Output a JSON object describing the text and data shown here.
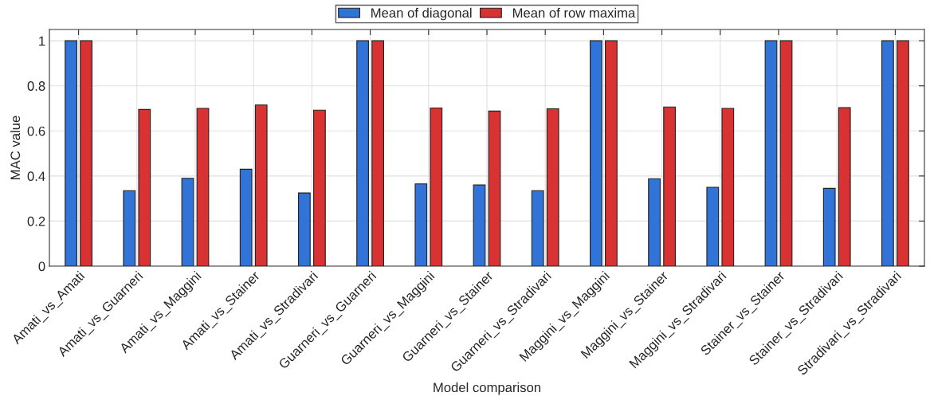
{
  "chart_data": {
    "type": "bar",
    "xlabel": "Model comparison",
    "ylabel": "MAC value",
    "categories": [
      "Amati_vs_Amati",
      "Amati_vs_Guarneri",
      "Amati_vs_Maggini",
      "Amati_vs_Stainer",
      "Amati_vs_Stradivari",
      "Guarneri_vs_Guarneri",
      "Guarneri_vs_Maggini",
      "Guarneri_vs_Stainer",
      "Guarneri_vs_Stradivari",
      "Maggini_vs_Maggini",
      "Maggini_vs_Stainer",
      "Maggini_vs_Stradivari",
      "Stainer_vs_Stainer",
      "Stainer_vs_Stradivari",
      "Stradivari_vs_Stradivari"
    ],
    "series": [
      {
        "name": "Mean of diagonal",
        "color": "#3173d6",
        "values": [
          1,
          0.335,
          0.39,
          0.43,
          0.325,
          1,
          0.365,
          0.36,
          0.335,
          1,
          0.388,
          0.35,
          1,
          0.345,
          1
        ]
      },
      {
        "name": "Mean of row maxima",
        "color": "#d93232",
        "values": [
          1,
          0.695,
          0.7,
          0.715,
          0.692,
          1,
          0.702,
          0.688,
          0.698,
          1,
          0.706,
          0.7,
          1,
          0.703,
          1
        ]
      }
    ],
    "ylim": [
      0,
      1.05
    ],
    "yticks": [
      0,
      0.2,
      0.4,
      0.6,
      0.8,
      1
    ],
    "grid": true,
    "legend": "top"
  }
}
